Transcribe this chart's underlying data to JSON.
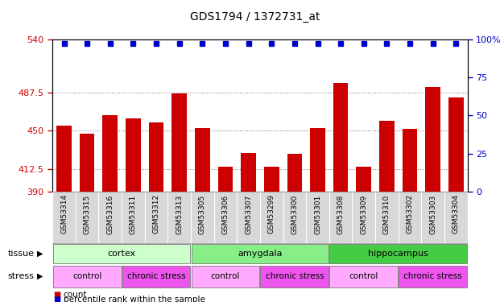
{
  "title": "GDS1794 / 1372731_at",
  "samples": [
    "GSM53314",
    "GSM53315",
    "GSM53316",
    "GSM53311",
    "GSM53312",
    "GSM53313",
    "GSM53305",
    "GSM53306",
    "GSM53307",
    "GSM53299",
    "GSM53300",
    "GSM53301",
    "GSM53308",
    "GSM53309",
    "GSM53310",
    "GSM53302",
    "GSM53303",
    "GSM53304"
  ],
  "counts": [
    455,
    447,
    465,
    462,
    458,
    487,
    453,
    415,
    428,
    415,
    427,
    453,
    497,
    415,
    460,
    452,
    493,
    483
  ],
  "percentile_vals": [
    97,
    97,
    97,
    97,
    97,
    97,
    97,
    97,
    97,
    97,
    97,
    97,
    97,
    97,
    97,
    97,
    97,
    97
  ],
  "ylim_left": [
    390,
    540
  ],
  "ylim_right": [
    0,
    100
  ],
  "yticks_left": [
    390,
    412.5,
    450,
    487.5,
    540
  ],
  "yticks_right": [
    0,
    25,
    50,
    75,
    100
  ],
  "ytick_right_labels": [
    "0",
    "25",
    "50",
    "75",
    "100%"
  ],
  "bar_color": "#cc0000",
  "dot_color": "#0000cc",
  "tissue_groups": [
    {
      "label": "cortex",
      "start": 0,
      "end": 6,
      "color": "#ccffcc"
    },
    {
      "label": "amygdala",
      "start": 6,
      "end": 12,
      "color": "#88ee88"
    },
    {
      "label": "hippocampus",
      "start": 12,
      "end": 18,
      "color": "#44cc44"
    }
  ],
  "stress_groups": [
    {
      "label": "control",
      "start": 0,
      "end": 3,
      "color": "#ffaaff"
    },
    {
      "label": "chronic stress",
      "start": 3,
      "end": 6,
      "color": "#ee55ee"
    },
    {
      "label": "control",
      "start": 6,
      "end": 9,
      "color": "#ffaaff"
    },
    {
      "label": "chronic stress",
      "start": 9,
      "end": 12,
      "color": "#ee55ee"
    },
    {
      "label": "control",
      "start": 12,
      "end": 15,
      "color": "#ffaaff"
    },
    {
      "label": "chronic stress",
      "start": 15,
      "end": 18,
      "color": "#ee55ee"
    }
  ],
  "tissue_label": "tissue",
  "stress_label": "stress",
  "legend_count_color": "#cc0000",
  "legend_dot_color": "#0000cc",
  "plot_bg_color": "#ffffff",
  "label_bg_color": "#d8d8d8",
  "grid_color": "#888888",
  "spine_color": "#000000"
}
